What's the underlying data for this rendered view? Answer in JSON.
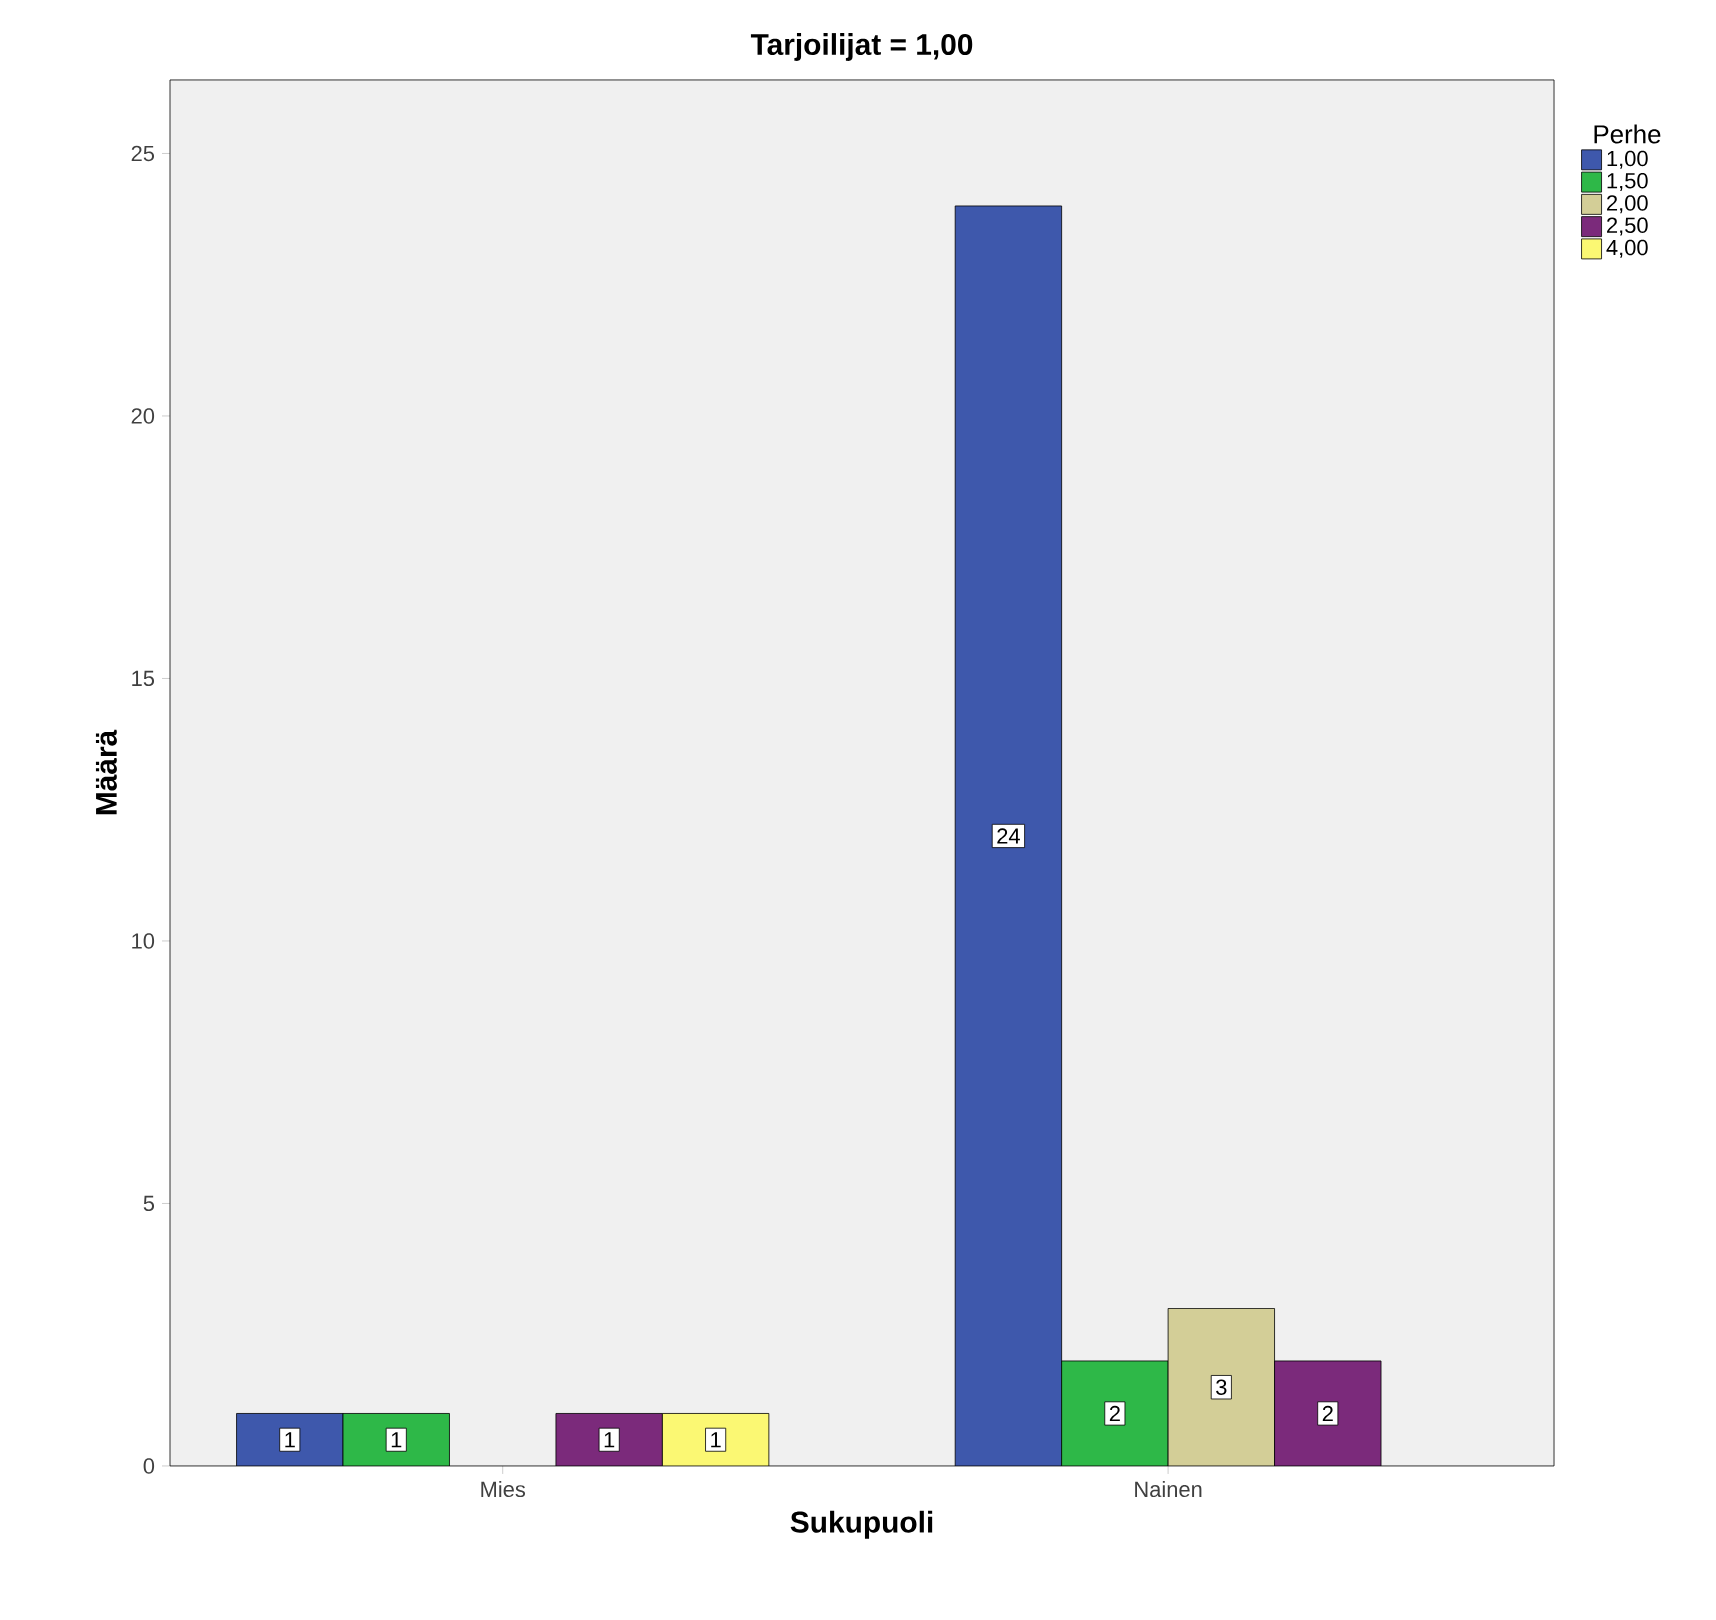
{
  "chart_data": {
    "type": "bar",
    "title": "Tarjoilijat = 1,00",
    "xlabel": "Sukupuoli",
    "ylabel": "Määrä",
    "legend_title": "Perhe",
    "categories": [
      "Mies",
      "Nainen"
    ],
    "series": [
      {
        "name": "1,00",
        "color": "#3e58ac",
        "values": [
          1,
          24
        ]
      },
      {
        "name": "1,50",
        "color": "#2eb848",
        "values": [
          1,
          2
        ]
      },
      {
        "name": "2,00",
        "color": "#d3ce97",
        "values": [
          null,
          3
        ]
      },
      {
        "name": "2,50",
        "color": "#7b2a7b",
        "values": [
          1,
          2
        ]
      },
      {
        "name": "4,00",
        "color": "#fbf873",
        "values": [
          1,
          null
        ]
      }
    ],
    "ylim": [
      0,
      26.4
    ],
    "yticks": [
      0,
      5,
      10,
      15,
      20,
      25
    ],
    "data_labels": true,
    "legend": "top right",
    "grid": false
  }
}
